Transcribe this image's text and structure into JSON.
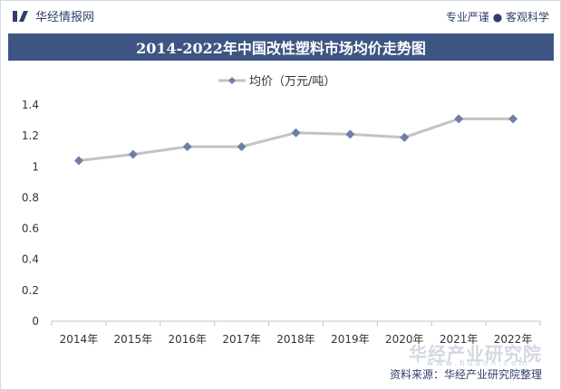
{
  "header": {
    "brand": "华经情报网",
    "slogan": "专业严谨 ● 客观科学"
  },
  "chart_data": {
    "type": "line",
    "title": "2014-2022年中国改性塑料市场均价走势图",
    "xlabel": "",
    "ylabel": "",
    "categories": [
      "2014年",
      "2015年",
      "2016年",
      "2017年",
      "2018年",
      "2019年",
      "2020年",
      "2021年",
      "2022年"
    ],
    "series": [
      {
        "name": "均价（万元/吨）",
        "values": [
          1.04,
          1.08,
          1.13,
          1.13,
          1.22,
          1.21,
          1.19,
          1.31,
          1.31
        ]
      }
    ],
    "ylim": [
      0,
      1.4
    ],
    "yticks": [
      "0",
      "0.2",
      "0.4",
      "0.6",
      "0.8",
      "1",
      "1.2",
      "1.4"
    ],
    "grid": false,
    "legend": "top-center",
    "colors": {
      "line": "#c3c3c3",
      "marker": "#6e7ea8",
      "title_bg": "#3e5584",
      "accent_text": "#2f3f6b"
    }
  },
  "footer": {
    "source": "资料来源：华经产业研究院整理",
    "watermark": "华经产业研究院",
    "watermark_url": "www.huaon.com"
  }
}
